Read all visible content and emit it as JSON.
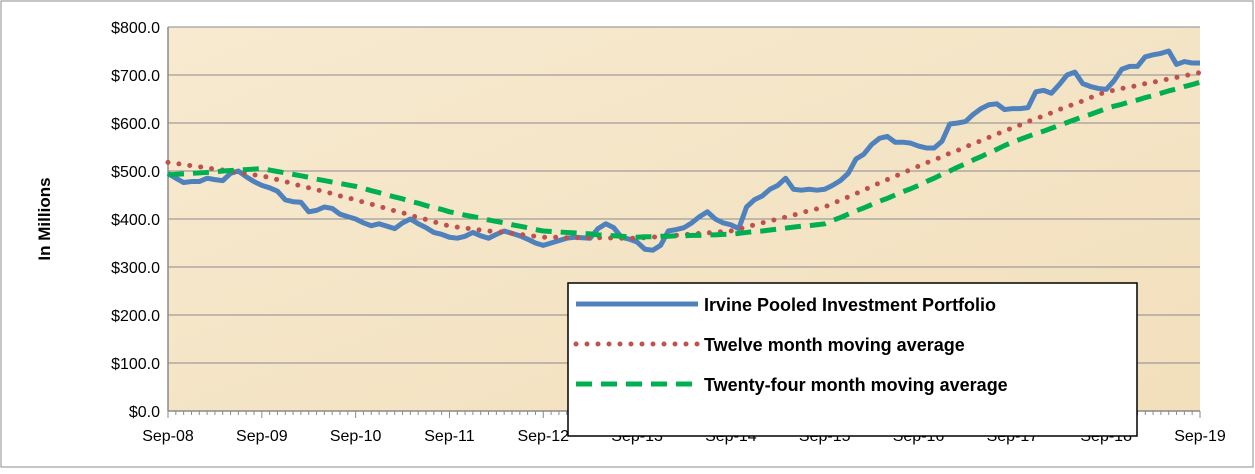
{
  "chart_data": {
    "type": "line",
    "y_label": "In Millions",
    "categories": [
      "Sep-08",
      null,
      null,
      null,
      null,
      null,
      null,
      null,
      null,
      null,
      null,
      null,
      "Sep-09",
      null,
      null,
      null,
      null,
      null,
      null,
      null,
      null,
      null,
      null,
      null,
      "Sep-10",
      null,
      null,
      null,
      null,
      null,
      null,
      null,
      null,
      null,
      null,
      null,
      "Sep-11",
      null,
      null,
      null,
      null,
      null,
      null,
      null,
      null,
      null,
      null,
      null,
      "Sep-12",
      null,
      null,
      null,
      null,
      null,
      null,
      null,
      null,
      null,
      null,
      null,
      "Sep-13",
      null,
      null,
      null,
      null,
      null,
      null,
      null,
      null,
      null,
      null,
      null,
      "Sep-14",
      null,
      null,
      null,
      null,
      null,
      null,
      null,
      null,
      null,
      null,
      null,
      "Sep-15",
      null,
      null,
      null,
      null,
      null,
      null,
      null,
      null,
      null,
      null,
      null,
      "Sep-16",
      null,
      null,
      null,
      null,
      null,
      null,
      null,
      null,
      null,
      null,
      null,
      "Sep-17",
      null,
      null,
      null,
      null,
      null,
      null,
      null,
      null,
      null,
      null,
      null,
      "Sep-18",
      null,
      null,
      null,
      null,
      null,
      null,
      null,
      null,
      null,
      null,
      null,
      "Sep-19"
    ],
    "series": [
      {
        "name": "Irvine Pooled Investment Portfolio",
        "color": "#4f81bd",
        "style": "solid",
        "values": [
          495,
          485,
          476,
          478,
          478,
          485,
          482,
          480,
          495,
          500,
          488,
          478,
          470,
          465,
          458,
          440,
          436,
          435,
          415,
          418,
          425,
          422,
          410,
          405,
          400,
          392,
          386,
          390,
          385,
          380,
          392,
          400,
          390,
          382,
          372,
          368,
          362,
          360,
          364,
          372,
          365,
          360,
          368,
          375,
          370,
          365,
          358,
          350,
          345,
          350,
          355,
          360,
          362,
          361,
          360,
          380,
          390,
          382,
          362,
          358,
          352,
          337,
          335,
          345,
          375,
          378,
          382,
          392,
          405,
          415,
          400,
          392,
          388,
          380,
          425,
          440,
          448,
          462,
          470,
          485,
          462,
          460,
          462,
          460,
          462,
          470,
          480,
          495,
          525,
          535,
          555,
          568,
          572,
          560,
          560,
          558,
          552,
          548,
          548,
          562,
          598,
          600,
          603,
          618,
          630,
          638,
          640,
          628,
          630,
          630,
          632,
          665,
          668,
          662,
          680,
          700,
          706,
          682,
          676,
          672,
          670,
          688,
          712,
          718,
          718,
          738,
          742,
          745,
          750,
          722,
          728,
          725,
          725
        ]
      },
      {
        "name": "Twelve month moving average",
        "color": "#c0504d",
        "style": "dotted",
        "values": [
          518,
          516,
          513,
          511,
          509,
          506,
          504,
          502,
          499,
          497,
          495,
          492,
          490,
          486,
          482,
          478,
          473,
          469,
          465,
          461,
          457,
          453,
          448,
          444,
          440,
          435,
          431,
          426,
          422,
          417,
          413,
          408,
          403,
          399,
          394,
          390,
          385,
          383,
          381,
          379,
          377,
          375,
          374,
          372,
          370,
          368,
          366,
          364,
          362,
          362,
          362,
          361,
          361,
          361,
          361,
          361,
          361,
          360,
          360,
          360,
          360,
          361,
          362,
          364,
          365,
          366,
          367,
          369,
          370,
          371,
          372,
          374,
          375,
          379,
          383,
          388,
          392,
          396,
          400,
          404,
          408,
          413,
          417,
          421,
          425,
          432,
          439,
          446,
          453,
          460,
          468,
          475,
          482,
          489,
          496,
          503,
          510,
          517,
          523,
          530,
          537,
          543,
          550,
          557,
          563,
          570,
          577,
          583,
          590,
          596,
          603,
          609,
          615,
          621,
          628,
          634,
          640,
          646,
          653,
          659,
          665,
          668,
          672,
          675,
          678,
          682,
          685,
          688,
          692,
          695,
          698,
          702,
          705
        ]
      },
      {
        "name": "Twenty-four month moving average",
        "color": "#00b050",
        "style": "dashed",
        "values": [
          492,
          493,
          494,
          495,
          496,
          497,
          498,
          500,
          501,
          502,
          503,
          504,
          505,
          502,
          499,
          496,
          493,
          490,
          487,
          483,
          480,
          477,
          474,
          471,
          468,
          464,
          459,
          455,
          450,
          446,
          442,
          437,
          433,
          428,
          424,
          420,
          415,
          412,
          408,
          405,
          402,
          398,
          395,
          392,
          388,
          385,
          382,
          378,
          375,
          374,
          373,
          372,
          371,
          370,
          369,
          367,
          366,
          365,
          364,
          363,
          362,
          363,
          363,
          364,
          364,
          365,
          365,
          366,
          366,
          367,
          367,
          368,
          368,
          370,
          372,
          374,
          375,
          377,
          379,
          381,
          383,
          385,
          386,
          388,
          390,
          397,
          403,
          410,
          417,
          423,
          430,
          437,
          443,
          450,
          457,
          463,
          470,
          478,
          485,
          493,
          500,
          508,
          515,
          523,
          530,
          538,
          545,
          553,
          560,
          566,
          572,
          578,
          583,
          589,
          595,
          601,
          607,
          613,
          618,
          624,
          630,
          635,
          639,
          644,
          648,
          653,
          657,
          662,
          667,
          671,
          676,
          680,
          685
        ]
      }
    ],
    "ylim": [
      0,
      800
    ],
    "yticks": [
      {
        "value": 0,
        "label": "$0.0"
      },
      {
        "value": 100,
        "label": "$100.0"
      },
      {
        "value": 200,
        "label": "$200.0"
      },
      {
        "value": 300,
        "label": "$300.0"
      },
      {
        "value": 400,
        "label": "$400.0"
      },
      {
        "value": 500,
        "label": "$500.0"
      },
      {
        "value": 600,
        "label": "$600.0"
      },
      {
        "value": 700,
        "label": "$700.0"
      },
      {
        "value": 800,
        "label": "$800.0"
      }
    ],
    "grid": true,
    "legend": "lower-right"
  }
}
